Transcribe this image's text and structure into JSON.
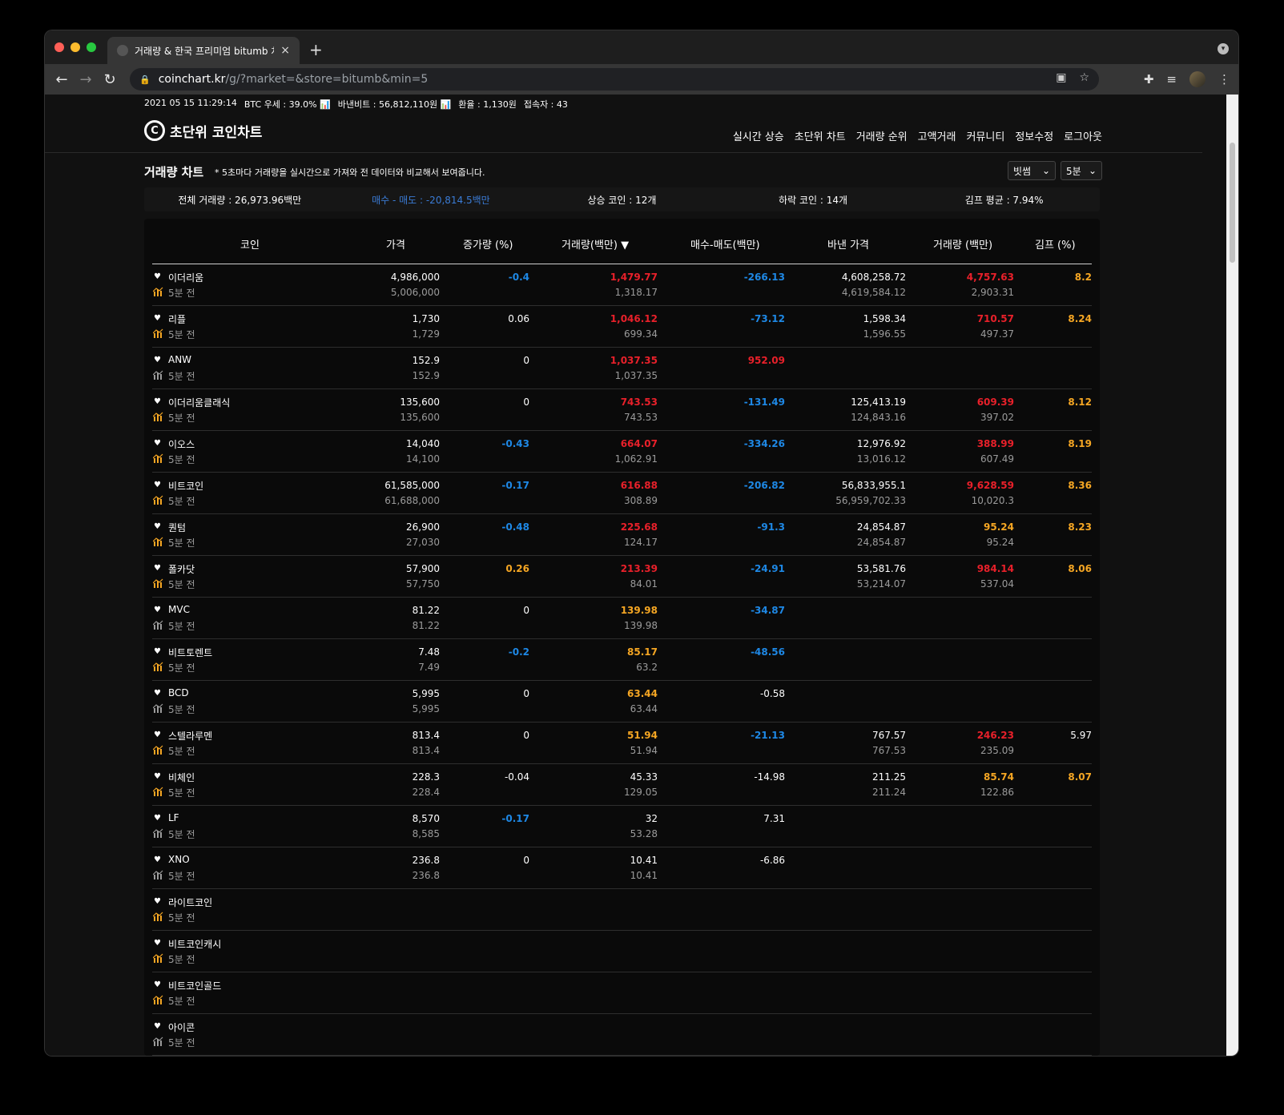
{
  "browser": {
    "tab_title": "거래량 & 한국 프리미엄 bitumb 차트",
    "tab_close": "×",
    "new_tab": "+",
    "url_host": "coinchart.kr",
    "url_path": "/g/?market=&store=bitumb&min=5"
  },
  "topbar": {
    "datetime": "2021 05 15 11:29:14",
    "btc_dominance": "BTC 우세 : 39.0%",
    "binance_btc": "바낸비트 : 56,812,110원",
    "exchange_rate": "환율 : 1,130원",
    "visitors": "접속자 : 43"
  },
  "header": {
    "logo_mark": "C",
    "logo_text": "초단위 코인차트",
    "nav": [
      "실시간 상승",
      "초단위 차트",
      "거래량 순위",
      "고액거래",
      "커뮤니티",
      "정보수정",
      "로그아웃"
    ]
  },
  "section": {
    "title": "거래량 차트",
    "note": "* 5초마다 거래량을 실시간으로 가져와 전 데이터와 비교해서 보여줍니다.",
    "exchange_select": "빗썸",
    "interval_select": "5분"
  },
  "summary": {
    "total_volume": "전체 거래량 : 26,973.96백만",
    "buy_sell": "매수 - 매도 : -20,814.5백만",
    "rising": "상승 코인 : 12개",
    "falling": "하락 코인 : 14개",
    "kimp_avg": "김프 평균 : 7.94%"
  },
  "table": {
    "headers": [
      "코인",
      "가격",
      "증가량 (%)",
      "거래량(백만) ▼",
      "매수-매도(백만)",
      "바낸 가격",
      "거래량 (백만)",
      "김프 (%)"
    ],
    "ago_label": "5분 전",
    "colors": {
      "red": "#e8202a",
      "blue": "#1e88e5",
      "orange": "#f5a623",
      "white": "#ffffff"
    },
    "rows": [
      {
        "name": "이더리움",
        "chart_color": "orange",
        "price": "4,986,000",
        "price_prev": "5,006,000",
        "chg": "-0.4",
        "chg_c": "blue",
        "vol": "1,479.77",
        "vol_c": "red",
        "vol_prev": "1,318.17",
        "bs": "-266.13",
        "bs_c": "blue",
        "bn": "4,608,258.72",
        "bn_prev": "4,619,584.12",
        "bnvol": "4,757.63",
        "bnvol_c": "red",
        "bnvol_prev": "2,903.31",
        "kimp": "8.2",
        "kimp_c": "orange"
      },
      {
        "name": "리플",
        "chart_color": "orange",
        "price": "1,730",
        "price_prev": "1,729",
        "chg": "0.06",
        "chg_c": "white",
        "vol": "1,046.12",
        "vol_c": "red",
        "vol_prev": "699.34",
        "bs": "-73.12",
        "bs_c": "blue",
        "bn": "1,598.34",
        "bn_prev": "1,596.55",
        "bnvol": "710.57",
        "bnvol_c": "red",
        "bnvol_prev": "497.37",
        "kimp": "8.24",
        "kimp_c": "orange"
      },
      {
        "name": "ANW",
        "chart_color": "gray",
        "price": "152.9",
        "price_prev": "152.9",
        "chg": "0",
        "chg_c": "white",
        "vol": "1,037.35",
        "vol_c": "red",
        "vol_prev": "1,037.35",
        "bs": "952.09",
        "bs_c": "red",
        "bn": "",
        "bn_prev": "",
        "bnvol": "",
        "bnvol_c": "white",
        "bnvol_prev": "",
        "kimp": "",
        "kimp_c": "white"
      },
      {
        "name": "이더리움클래식",
        "chart_color": "orange",
        "price": "135,600",
        "price_prev": "135,600",
        "chg": "0",
        "chg_c": "white",
        "vol": "743.53",
        "vol_c": "red",
        "vol_prev": "743.53",
        "bs": "-131.49",
        "bs_c": "blue",
        "bn": "125,413.19",
        "bn_prev": "124,843.16",
        "bnvol": "609.39",
        "bnvol_c": "red",
        "bnvol_prev": "397.02",
        "kimp": "8.12",
        "kimp_c": "orange"
      },
      {
        "name": "이오스",
        "chart_color": "orange",
        "price": "14,040",
        "price_prev": "14,100",
        "chg": "-0.43",
        "chg_c": "blue",
        "vol": "664.07",
        "vol_c": "red",
        "vol_prev": "1,062.91",
        "bs": "-334.26",
        "bs_c": "blue",
        "bn": "12,976.92",
        "bn_prev": "13,016.12",
        "bnvol": "388.99",
        "bnvol_c": "red",
        "bnvol_prev": "607.49",
        "kimp": "8.19",
        "kimp_c": "orange"
      },
      {
        "name": "비트코인",
        "chart_color": "orange",
        "price": "61,585,000",
        "price_prev": "61,688,000",
        "chg": "-0.17",
        "chg_c": "blue",
        "vol": "616.88",
        "vol_c": "red",
        "vol_prev": "308.89",
        "bs": "-206.82",
        "bs_c": "blue",
        "bn": "56,833,955.1",
        "bn_prev": "56,959,702.33",
        "bnvol": "9,628.59",
        "bnvol_c": "red",
        "bnvol_prev": "10,020.3",
        "kimp": "8.36",
        "kimp_c": "orange"
      },
      {
        "name": "퀀텀",
        "chart_color": "orange",
        "price": "26,900",
        "price_prev": "27,030",
        "chg": "-0.48",
        "chg_c": "blue",
        "vol": "225.68",
        "vol_c": "red",
        "vol_prev": "124.17",
        "bs": "-91.3",
        "bs_c": "blue",
        "bn": "24,854.87",
        "bn_prev": "24,854.87",
        "bnvol": "95.24",
        "bnvol_c": "orange",
        "bnvol_prev": "95.24",
        "kimp": "8.23",
        "kimp_c": "orange"
      },
      {
        "name": "폴카닷",
        "chart_color": "orange",
        "price": "57,900",
        "price_prev": "57,750",
        "chg": "0.26",
        "chg_c": "orange",
        "vol": "213.39",
        "vol_c": "red",
        "vol_prev": "84.01",
        "bs": "-24.91",
        "bs_c": "blue",
        "bn": "53,581.76",
        "bn_prev": "53,214.07",
        "bnvol": "984.14",
        "bnvol_c": "red",
        "bnvol_prev": "537.04",
        "kimp": "8.06",
        "kimp_c": "orange"
      },
      {
        "name": "MVC",
        "chart_color": "gray",
        "price": "81.22",
        "price_prev": "81.22",
        "chg": "0",
        "chg_c": "white",
        "vol": "139.98",
        "vol_c": "orange",
        "vol_prev": "139.98",
        "bs": "-34.87",
        "bs_c": "blue",
        "bn": "",
        "bn_prev": "",
        "bnvol": "",
        "bnvol_c": "white",
        "bnvol_prev": "",
        "kimp": "",
        "kimp_c": "white"
      },
      {
        "name": "비트토렌트",
        "chart_color": "orange",
        "price": "7.48",
        "price_prev": "7.49",
        "chg": "-0.2",
        "chg_c": "blue",
        "vol": "85.17",
        "vol_c": "orange",
        "vol_prev": "63.2",
        "bs": "-48.56",
        "bs_c": "blue",
        "bn": "",
        "bn_prev": "",
        "bnvol": "",
        "bnvol_c": "white",
        "bnvol_prev": "",
        "kimp": "",
        "kimp_c": "white"
      },
      {
        "name": "BCD",
        "chart_color": "gray",
        "price": "5,995",
        "price_prev": "5,995",
        "chg": "0",
        "chg_c": "white",
        "vol": "63.44",
        "vol_c": "orange",
        "vol_prev": "63.44",
        "bs": "-0.58",
        "bs_c": "white",
        "bn": "",
        "bn_prev": "",
        "bnvol": "",
        "bnvol_c": "white",
        "bnvol_prev": "",
        "kimp": "",
        "kimp_c": "white"
      },
      {
        "name": "스텔라루멘",
        "chart_color": "orange",
        "price": "813.4",
        "price_prev": "813.4",
        "chg": "0",
        "chg_c": "white",
        "vol": "51.94",
        "vol_c": "orange",
        "vol_prev": "51.94",
        "bs": "-21.13",
        "bs_c": "blue",
        "bn": "767.57",
        "bn_prev": "767.53",
        "bnvol": "246.23",
        "bnvol_c": "red",
        "bnvol_prev": "235.09",
        "kimp": "5.97",
        "kimp_c": "white"
      },
      {
        "name": "비체인",
        "chart_color": "orange",
        "price": "228.3",
        "price_prev": "228.4",
        "chg": "-0.04",
        "chg_c": "white",
        "vol": "45.33",
        "vol_c": "white",
        "vol_prev": "129.05",
        "bs": "-14.98",
        "bs_c": "white",
        "bn": "211.25",
        "bn_prev": "211.24",
        "bnvol": "85.74",
        "bnvol_c": "orange",
        "bnvol_prev": "122.86",
        "kimp": "8.07",
        "kimp_c": "orange"
      },
      {
        "name": "LF",
        "chart_color": "gray",
        "price": "8,570",
        "price_prev": "8,585",
        "chg": "-0.17",
        "chg_c": "blue",
        "vol": "32",
        "vol_c": "white",
        "vol_prev": "53.28",
        "bs": "7.31",
        "bs_c": "white",
        "bn": "",
        "bn_prev": "",
        "bnvol": "",
        "bnvol_c": "white",
        "bnvol_prev": "",
        "kimp": "",
        "kimp_c": "white"
      },
      {
        "name": "XNO",
        "chart_color": "gray",
        "price": "236.8",
        "price_prev": "236.8",
        "chg": "0",
        "chg_c": "white",
        "vol": "10.41",
        "vol_c": "white",
        "vol_prev": "10.41",
        "bs": "-6.86",
        "bs_c": "white",
        "bn": "",
        "bn_prev": "",
        "bnvol": "",
        "bnvol_c": "white",
        "bnvol_prev": "",
        "kimp": "",
        "kimp_c": "white"
      },
      {
        "name": "라이트코인",
        "chart_color": "orange",
        "price": "",
        "price_prev": "",
        "chg": "",
        "chg_c": "white",
        "vol": "",
        "vol_c": "white",
        "vol_prev": "",
        "bs": "",
        "bs_c": "white",
        "bn": "",
        "bn_prev": "",
        "bnvol": "",
        "bnvol_c": "white",
        "bnvol_prev": "",
        "kimp": "",
        "kimp_c": "white"
      },
      {
        "name": "비트코인캐시",
        "chart_color": "orange",
        "price": "",
        "price_prev": "",
        "chg": "",
        "chg_c": "white",
        "vol": "",
        "vol_c": "white",
        "vol_prev": "",
        "bs": "",
        "bs_c": "white",
        "bn": "",
        "bn_prev": "",
        "bnvol": "",
        "bnvol_c": "white",
        "bnvol_prev": "",
        "kimp": "",
        "kimp_c": "white"
      },
      {
        "name": "비트코인골드",
        "chart_color": "orange",
        "price": "",
        "price_prev": "",
        "chg": "",
        "chg_c": "white",
        "vol": "",
        "vol_c": "white",
        "vol_prev": "",
        "bs": "",
        "bs_c": "white",
        "bn": "",
        "bn_prev": "",
        "bnvol": "",
        "bnvol_c": "white",
        "bnvol_prev": "",
        "kimp": "",
        "kimp_c": "white"
      },
      {
        "name": "아이콘",
        "chart_color": "gray",
        "price": "",
        "price_prev": "",
        "chg": "",
        "chg_c": "white",
        "vol": "",
        "vol_c": "white",
        "vol_prev": "",
        "bs": "",
        "bs_c": "white",
        "bn": "",
        "bn_prev": "",
        "bnvol": "",
        "bnvol_c": "white",
        "bnvol_prev": "",
        "kimp": "",
        "kimp_c": "white"
      }
    ]
  }
}
